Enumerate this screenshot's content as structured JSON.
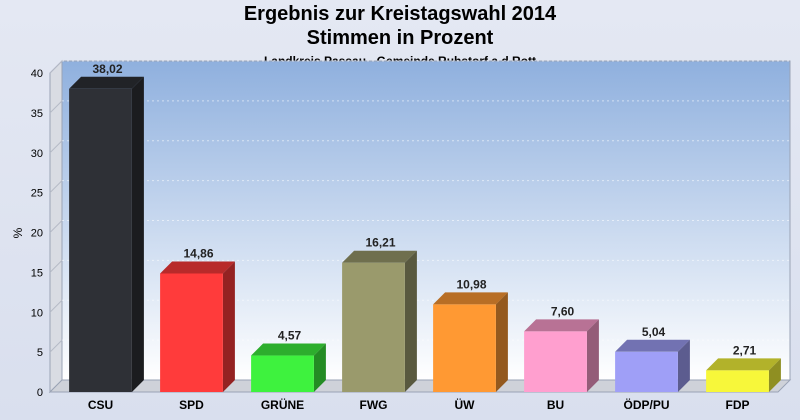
{
  "chart_data": {
    "type": "bar",
    "title": "Ergebnis zur Kreistagswahl 2014",
    "subtitle": "Stimmen in Prozent",
    "caption": "Landkreis Passau - Gemeinde Ruhstorf a.d.Rott",
    "ylabel": "%",
    "xlabel": "",
    "ylim": [
      0,
      40
    ],
    "yticks": [
      0,
      5,
      10,
      15,
      20,
      25,
      30,
      35,
      40
    ],
    "categories": [
      "CSU",
      "SPD",
      "GRÜNE",
      "FWG",
      "ÜW",
      "BU",
      "ÖDP/PU",
      "FDP"
    ],
    "values": [
      38.02,
      14.86,
      4.57,
      16.21,
      10.98,
      7.6,
      5.04,
      2.71
    ],
    "value_labels": [
      "38,02",
      "14,86",
      "4,57",
      "16,21",
      "10,98",
      "7,60",
      "5,04",
      "2,71"
    ],
    "colors": [
      "#2e3036",
      "#ff3b3b",
      "#3ef23e",
      "#9a9a6c",
      "#ff9933",
      "#ff9fcf",
      "#9f9ff7",
      "#f7f73a"
    ],
    "grid": true,
    "legend": "none"
  }
}
